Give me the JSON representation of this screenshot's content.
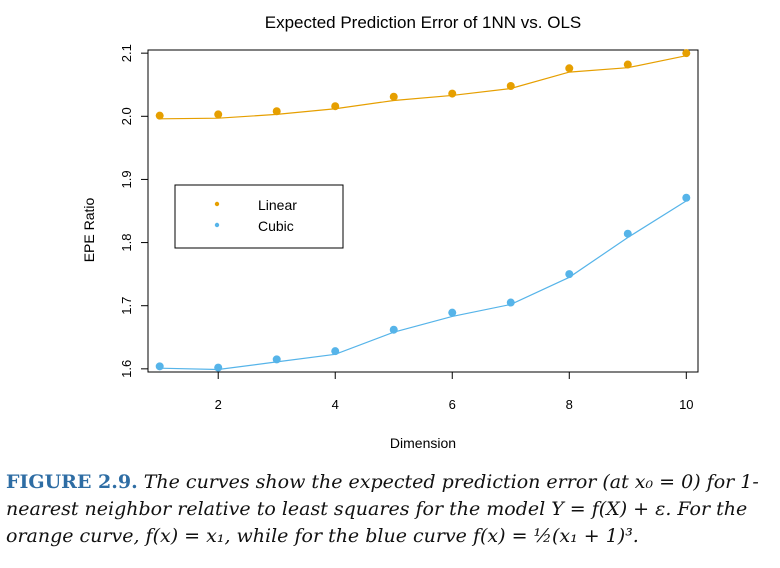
{
  "chart_data": {
    "type": "line",
    "title": "Expected Prediction Error of 1NN vs. OLS",
    "xlabel": "Dimension",
    "ylabel": "EPE Ratio",
    "xlim": [
      0.8,
      10.2
    ],
    "ylim": [
      1.595,
      2.105
    ],
    "xticks": [
      2,
      4,
      6,
      8,
      10
    ],
    "yticks": [
      1.6,
      1.7,
      1.8,
      1.9,
      2.0,
      2.1
    ],
    "xtick_labels": [
      "2",
      "4",
      "6",
      "8",
      "10"
    ],
    "ytick_labels": [
      "1.6",
      "1.7",
      "1.8",
      "1.9",
      "2.0",
      "2.1"
    ],
    "legend_position": "upper-left",
    "grid": false,
    "series": [
      {
        "name": "Linear",
        "color": "#E69F00",
        "x": [
          1,
          2,
          3,
          4,
          5,
          6,
          7,
          8,
          9,
          10
        ],
        "points": [
          2.001,
          2.003,
          2.008,
          2.016,
          2.031,
          2.036,
          2.048,
          2.076,
          2.082,
          2.1
        ],
        "curve": [
          1.996,
          1.997,
          2.003,
          2.012,
          2.025,
          2.033,
          2.044,
          2.07,
          2.077,
          2.096
        ]
      },
      {
        "name": "Cubic",
        "color": "#56B4E9",
        "x": [
          1,
          2,
          3,
          4,
          5,
          6,
          7,
          8,
          9,
          10
        ],
        "points": [
          1.604,
          1.602,
          1.615,
          1.628,
          1.662,
          1.689,
          1.705,
          1.75,
          1.814,
          1.871
        ],
        "curve": [
          1.601,
          1.599,
          1.611,
          1.623,
          1.658,
          1.683,
          1.702,
          1.745,
          1.808,
          1.866
        ]
      }
    ]
  },
  "caption": {
    "label": "FIGURE 2.9.",
    "text": "The curves show the expected prediction error (at x₀ = 0) for 1-nearest neighbor relative to least squares for the model Y = f(X) + ε. For the orange curve, f(x) = x₁, while for the blue curve f(x) = ½(x₁ + 1)³."
  }
}
